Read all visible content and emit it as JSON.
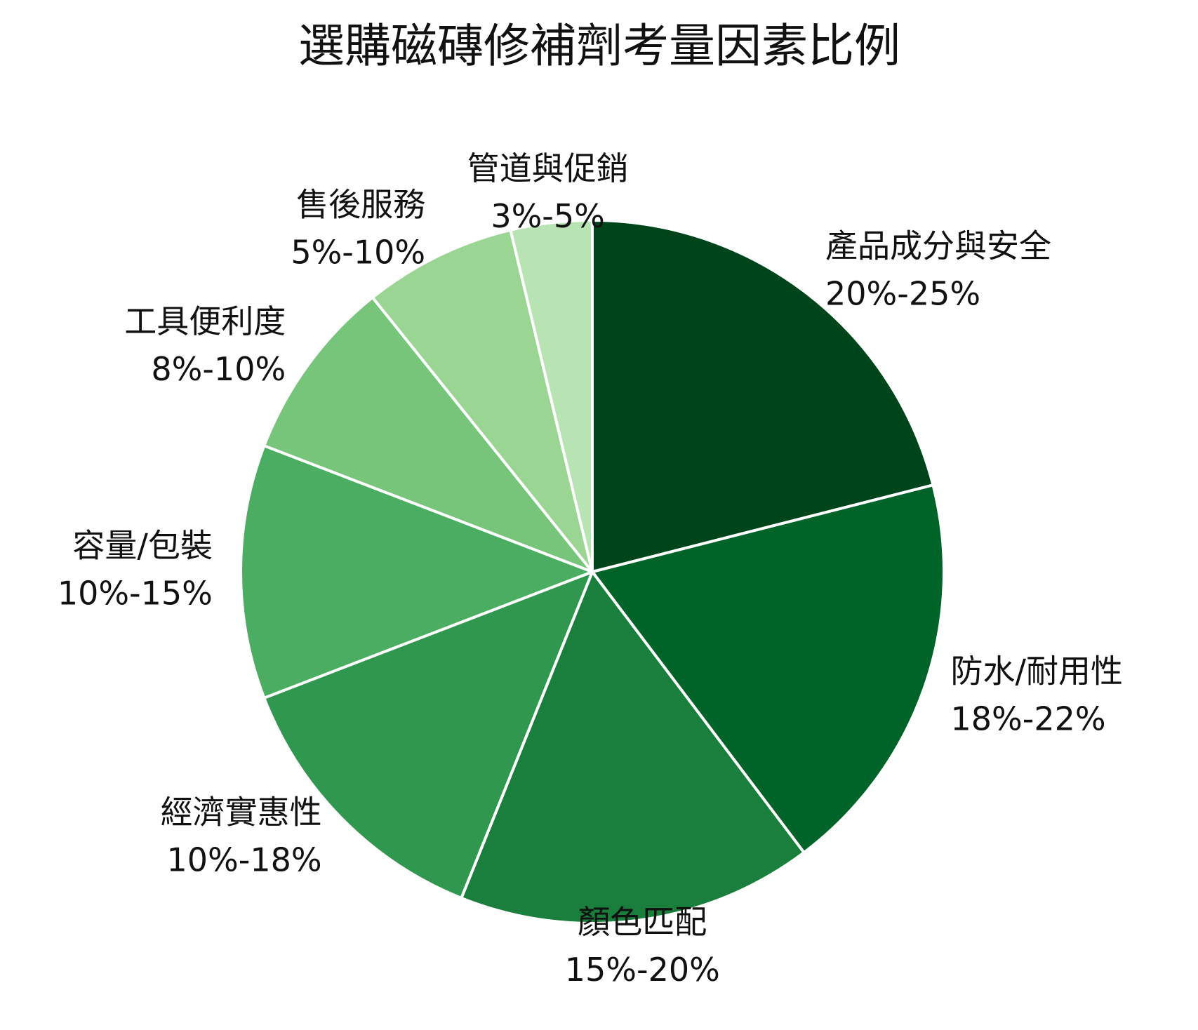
{
  "chart_data": {
    "type": "pie",
    "title": "選購磁磚修補劑考量因素比例",
    "categories": [
      "產品成分與安全",
      "防水/耐用性",
      "顏色匹配",
      "經濟實惠性",
      "容量/包裝",
      "工具便利度",
      "售後服務",
      "管道與促銷"
    ],
    "values": [
      22.5,
      20,
      17.5,
      14,
      12.5,
      9,
      7.5,
      4
    ],
    "value_labels": [
      "20%-25%",
      "18%-22%",
      "15%-20%",
      "10%-18%",
      "10%-15%",
      "8%-10%",
      "5%-10%",
      "3%-5%"
    ],
    "colors": [
      "#00441b",
      "#006428",
      "#1a7f3c",
      "#2f974e",
      "#4bad62",
      "#77c57a",
      "#9bd594",
      "#b8e3b2"
    ]
  }
}
